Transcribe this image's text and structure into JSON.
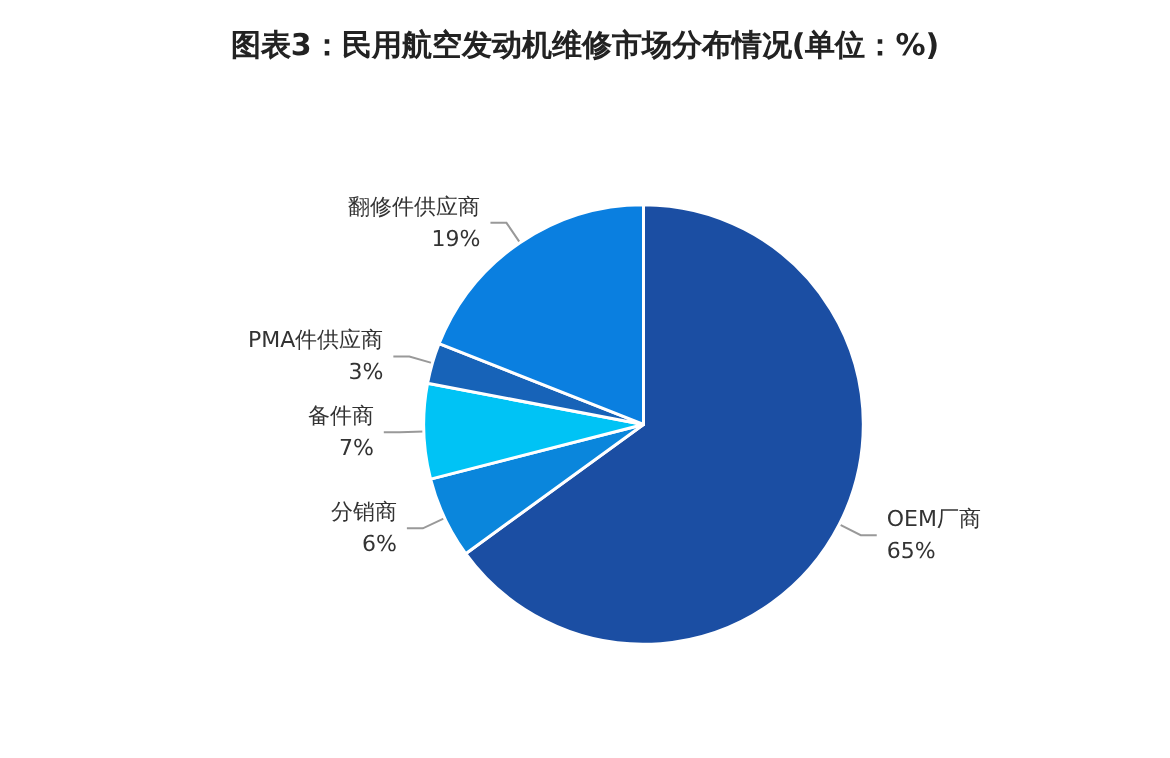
{
  "chart_data": {
    "type": "pie",
    "title": "图表3：民用航空发动机维修市场分布情况(单位：%)",
    "categories": [
      "OEM厂商",
      "分销商",
      "备件商",
      "PMA件供应商",
      "翻修件供应商"
    ],
    "values": [
      65,
      6,
      7,
      3,
      19
    ],
    "colors": [
      "#1b4ea3",
      "#0a86dc",
      "#00c3f5",
      "#1763b8",
      "#0a7fe0"
    ],
    "value_labels": [
      "65%",
      "6%",
      "7%",
      "3%",
      "19%"
    ],
    "legend": false
  }
}
